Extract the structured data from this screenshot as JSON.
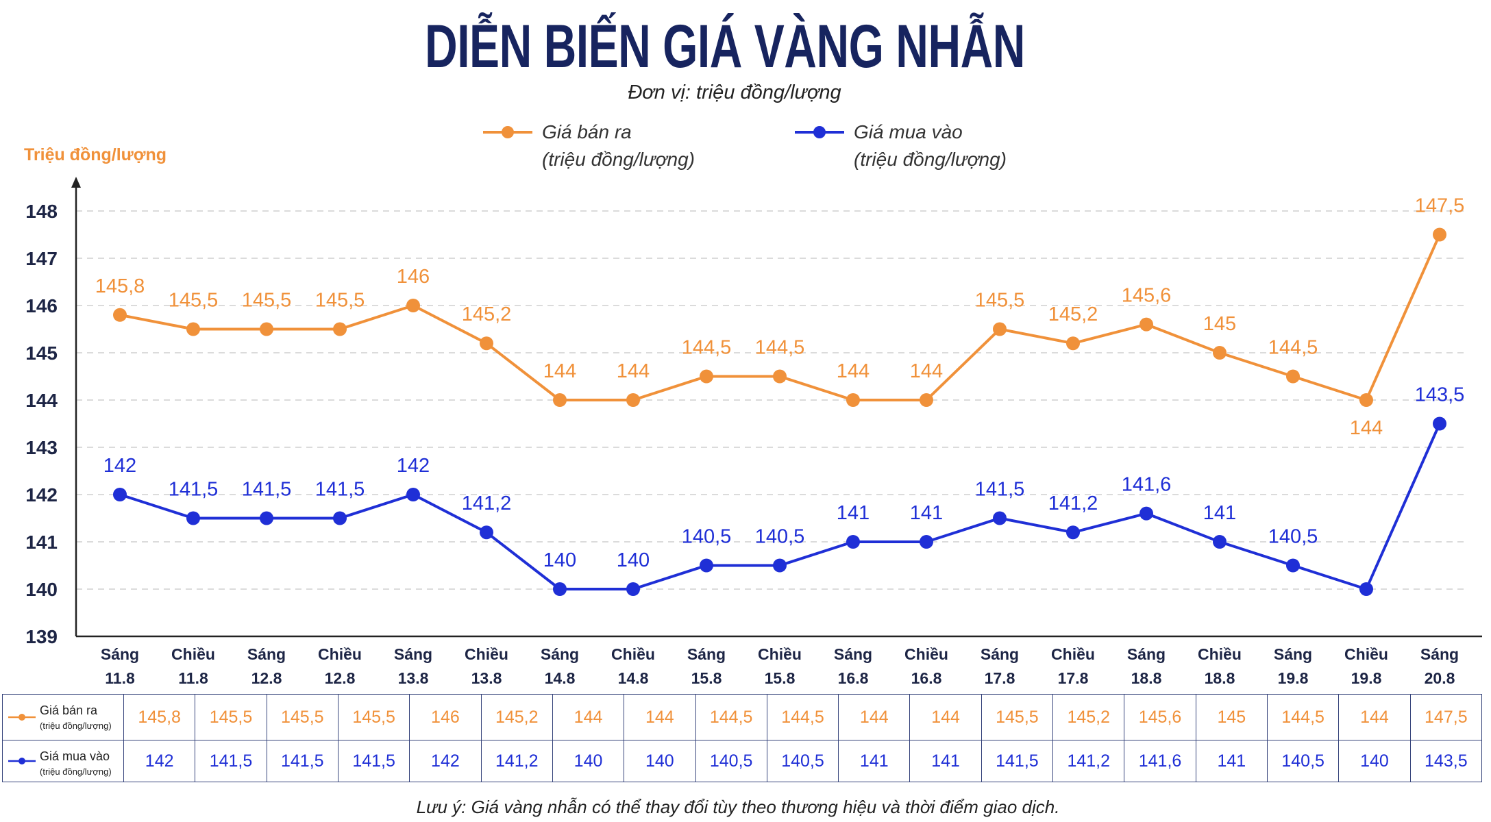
{
  "colors": {
    "title": "#17245f",
    "axis_label": "#f0913a",
    "axis_text": "#1d2545",
    "grid": "#cfcfcf",
    "table_border": "#34427a"
  },
  "chart_data": {
    "type": "line",
    "title": "DIỄN BIẾN GIÁ VÀNG NHẪN",
    "subtitle": "Đơn vị: triệu đồng/lượng",
    "ylabel": "Triệu đồng/lượng",
    "ylim": [
      139,
      148
    ],
    "y_ticks": [
      139,
      140,
      141,
      142,
      143,
      144,
      145,
      146,
      147,
      148
    ],
    "grid": true,
    "legend_position": "top",
    "categories": [
      {
        "period": "Sáng",
        "date": "11.8"
      },
      {
        "period": "Chiều",
        "date": "11.8"
      },
      {
        "period": "Sáng",
        "date": "12.8"
      },
      {
        "period": "Chiều",
        "date": "12.8"
      },
      {
        "period": "Sáng",
        "date": "13.8"
      },
      {
        "period": "Chiều",
        "date": "13.8"
      },
      {
        "period": "Sáng",
        "date": "14.8"
      },
      {
        "period": "Chiều",
        "date": "14.8"
      },
      {
        "period": "Sáng",
        "date": "15.8"
      },
      {
        "period": "Chiều",
        "date": "15.8"
      },
      {
        "period": "Sáng",
        "date": "16.8"
      },
      {
        "period": "Chiều",
        "date": "16.8"
      },
      {
        "period": "Sáng",
        "date": "17.8"
      },
      {
        "period": "Chiều",
        "date": "17.8"
      },
      {
        "period": "Sáng",
        "date": "18.8"
      },
      {
        "period": "Chiều",
        "date": "18.8"
      },
      {
        "period": "Sáng",
        "date": "19.8"
      },
      {
        "period": "Chiều",
        "date": "19.8"
      },
      {
        "period": "Sáng",
        "date": "20.8"
      }
    ],
    "series": [
      {
        "name": "Giá bán ra",
        "unit": "(triệu đồng/lượng)",
        "color": "#f0913a",
        "values": [
          145.8,
          145.5,
          145.5,
          145.5,
          146,
          145.2,
          144,
          144,
          144.5,
          144.5,
          144,
          144,
          145.5,
          145.2,
          145.6,
          145,
          144.5,
          144,
          147.5
        ],
        "labels": [
          "145,8",
          "145,5",
          "145,5",
          "145,5",
          "146",
          "145,2",
          "144",
          "144",
          "144,5",
          "144,5",
          "144",
          "144",
          "145,5",
          "145,2",
          "145,6",
          "145",
          "144,5",
          "144",
          "147,5"
        ]
      },
      {
        "name": "Giá mua vào",
        "unit": "(triệu đồng/lượng)",
        "color": "#1f2fd6",
        "values": [
          142,
          141.5,
          141.5,
          141.5,
          142,
          141.2,
          140,
          140,
          140.5,
          140.5,
          141,
          141,
          141.5,
          141.2,
          141.6,
          141,
          140.5,
          140,
          143.5
        ],
        "labels": [
          "142",
          "141,5",
          "141,5",
          "141,5",
          "142",
          "141,2",
          "140",
          "140",
          "140,5",
          "140,5",
          "141",
          "141",
          "141,5",
          "141,2",
          "141,6",
          "141",
          "140,5",
          null,
          "143,5"
        ]
      }
    ]
  },
  "note": "Lưu ý: Giá vàng nhẫn có thể thay đổi tùy theo thương hiệu và thời điểm giao dịch."
}
